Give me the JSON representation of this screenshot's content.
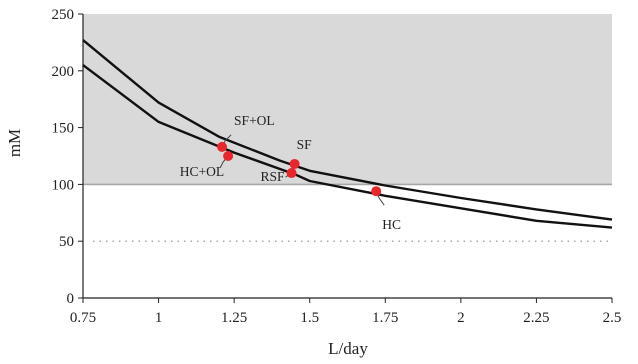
{
  "chart_data": {
    "type": "line",
    "title": "",
    "xlabel": "L/day",
    "ylabel": "mM",
    "xlim": [
      0.75,
      2.5
    ],
    "ylim": [
      0,
      250
    ],
    "x_ticks": [
      "0.75",
      "1",
      "1.25",
      "1.5",
      "1.75",
      "2",
      "2.25",
      "2.5"
    ],
    "y_ticks": [
      "0",
      "50",
      "100",
      "150",
      "200",
      "250"
    ],
    "shaded_region": {
      "y_from": 100,
      "y_to": 250,
      "color": "#d9d9d9"
    },
    "reference_lines": [
      {
        "y": 100,
        "style": "solid",
        "color": "#a6a6a6"
      },
      {
        "y": 50,
        "style": "dotted",
        "color": "#8c8c8c"
      }
    ],
    "series": [
      {
        "color": "#111111",
        "points": [
          [
            0.75,
            227
          ],
          [
            1.0,
            172
          ],
          [
            1.2,
            142
          ],
          [
            1.4,
            121
          ],
          [
            1.5,
            112
          ],
          [
            1.75,
            99
          ],
          [
            2.0,
            88
          ],
          [
            2.25,
            78
          ],
          [
            2.5,
            69
          ]
        ]
      },
      {
        "color": "#111111",
        "points": [
          [
            0.75,
            205
          ],
          [
            1.0,
            155
          ],
          [
            1.25,
            128
          ],
          [
            1.45,
            109
          ],
          [
            1.5,
            103
          ],
          [
            1.75,
            90
          ],
          [
            2.0,
            79
          ],
          [
            2.25,
            68
          ],
          [
            2.5,
            62
          ]
        ]
      }
    ],
    "points": [
      {
        "label": "SF+OL",
        "x": 1.21,
        "y": 133,
        "color": "#e8262c"
      },
      {
        "label": "HC+OL",
        "x": 1.23,
        "y": 125,
        "color": "#e8262c"
      },
      {
        "label": "SF",
        "x": 1.45,
        "y": 118,
        "color": "#e8262c"
      },
      {
        "label": "RSF",
        "x": 1.44,
        "y": 110,
        "color": "#e8262c"
      },
      {
        "label": "HC",
        "x": 1.72,
        "y": 94,
        "color": "#e8262c"
      }
    ]
  }
}
